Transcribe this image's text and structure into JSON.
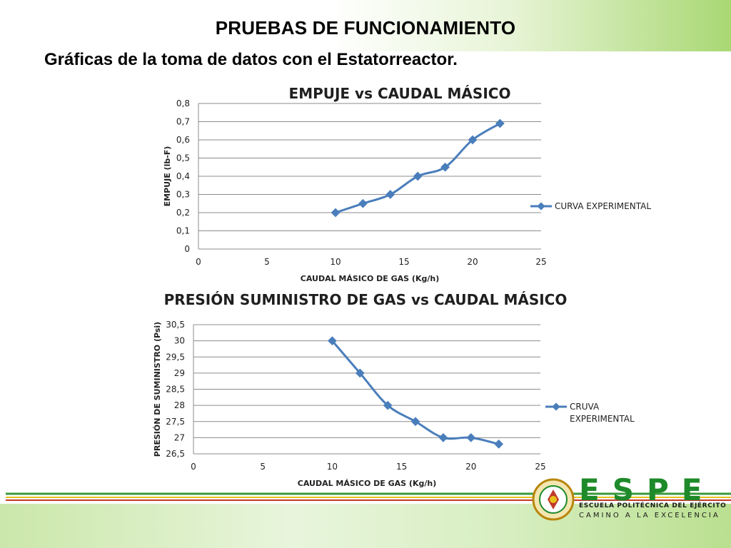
{
  "slide": {
    "title": "PRUEBAS DE FUNCIONAMIENTO",
    "subtitle": "Gráficas de la toma de datos con el Estatorreactor."
  },
  "logo": {
    "brand": "ESPE",
    "line1": "ESCUELA POLITÉCNICA DEL EJÉRCITO",
    "line2": "CAMINO A LA EXCELENCIA",
    "seal_icon": "university-seal-icon",
    "colors": {
      "brand": "#1e8a2a",
      "accent": "#e6a21b"
    }
  },
  "chart_data": [
    {
      "type": "line",
      "title": "EMPUJE vs CAUDAL MÁSICO",
      "xlabel": "CAUDAL MÁSICO DE GAS (Kg/h)",
      "ylabel": "EMPUJE (lb-F)",
      "xlim": [
        0,
        25
      ],
      "ylim": [
        0,
        0.8
      ],
      "xticks": [
        "0",
        "5",
        "10",
        "15",
        "20",
        "25"
      ],
      "yticks": [
        "0",
        "0,1",
        "0,2",
        "0,3",
        "0,4",
        "0,5",
        "0,6",
        "0,7",
        "0,8"
      ],
      "grid": "horizontal",
      "legend_position": "right",
      "series": [
        {
          "name": "CURVA EXPERIMENTAL",
          "color": "#4a7ebb",
          "x": [
            10,
            12,
            14,
            16,
            18,
            20,
            22
          ],
          "y": [
            0.2,
            0.25,
            0.3,
            0.4,
            0.45,
            0.6,
            0.69
          ]
        }
      ]
    },
    {
      "type": "line",
      "title": "PRESIÓN SUMINISTRO DE GAS vs CAUDAL MÁSICO",
      "xlabel": "CAUDAL MÁSICO DE GAS (Kg/h)",
      "ylabel": "PRESIÓN DE SUMINISTRO (Psi)",
      "xlim": [
        0,
        25
      ],
      "ylim": [
        26.5,
        30.5
      ],
      "xticks": [
        "0",
        "5",
        "10",
        "15",
        "20",
        "25"
      ],
      "yticks": [
        "26,5",
        "27",
        "27,5",
        "28",
        "28,5",
        "29",
        "29,5",
        "30",
        "30,5"
      ],
      "grid": "horizontal",
      "legend_position": "right",
      "series": [
        {
          "name": "CRUVA EXPERIMENTAL",
          "color": "#4a7ebb",
          "x": [
            10,
            12,
            14,
            16,
            18,
            20,
            22
          ],
          "y": [
            30,
            29,
            28,
            27.5,
            27,
            27,
            26.8
          ]
        }
      ]
    }
  ]
}
